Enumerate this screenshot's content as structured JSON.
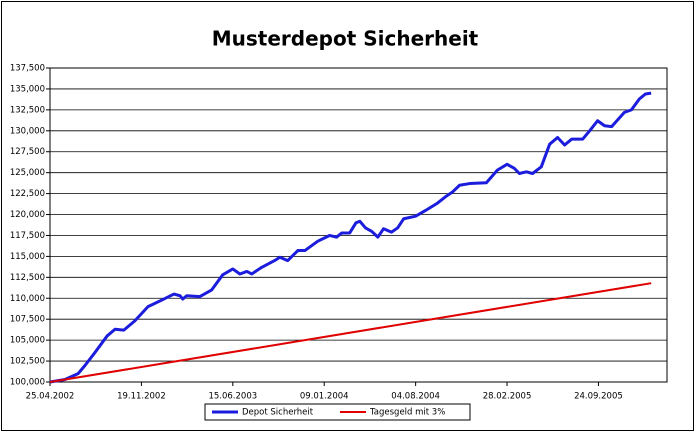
{
  "chart_data": {
    "type": "line",
    "title": "Musterdepot Sicherheit",
    "xlim": [
      "25.04.2002",
      "27.02.2006"
    ],
    "xticks": [
      "25.04.2002",
      "19.11.2002",
      "15.06.2003",
      "09.01.2004",
      "04.08.2004",
      "28.02.2005",
      "24.09.2005"
    ],
    "ylim": [
      100000,
      137500
    ],
    "yticks": [
      {
        "value": 100000,
        "label": "100,000"
      },
      {
        "value": 102500,
        "label": "102,500"
      },
      {
        "value": 105000,
        "label": "105,000"
      },
      {
        "value": 107500,
        "label": "107,500"
      },
      {
        "value": 110000,
        "label": "110,000"
      },
      {
        "value": 112500,
        "label": "112,500"
      },
      {
        "value": 115000,
        "label": "115,000"
      },
      {
        "value": 117500,
        "label": "117,500"
      },
      {
        "value": 120000,
        "label": "120,000"
      },
      {
        "value": 122500,
        "label": "122,500"
      },
      {
        "value": 125000,
        "label": "125,000"
      },
      {
        "value": 127500,
        "label": "127,500"
      },
      {
        "value": 130000,
        "label": "130,000"
      },
      {
        "value": 132500,
        "label": "132,500"
      },
      {
        "value": 135000,
        "label": "135,000"
      },
      {
        "value": 137500,
        "label": "137,500"
      }
    ],
    "grid": true,
    "legend": "bottom",
    "series": [
      {
        "name": "Depot Sicherheit",
        "color": "#1c1cdc",
        "x": [
          "25.04.2002",
          "29.05.2002",
          "28.06.2002",
          "14.07.2002",
          "05.08.2002",
          "02.09.2002",
          "20.09.2002",
          "10.10.2002",
          "04.11.2002",
          "04.12.2002",
          "05.01.2003",
          "01.02.2003",
          "15.02.2003",
          "21.02.2003",
          "02.03.2003",
          "01.04.2003",
          "28.04.2003",
          "23.05.2003",
          "15.06.2003",
          "01.07.2003",
          "17.07.2003",
          "28.07.2003",
          "20.08.2003",
          "18.09.2003",
          "30.09.2003",
          "18.10.2003",
          "10.11.2003",
          "26.11.2003",
          "25.12.2003",
          "21.01.2004",
          "06.02.2004",
          "18.02.2004",
          "07.03.2004",
          "21.03.2004",
          "30.03.2004",
          "12.04.2004",
          "26.04.2004",
          "10.05.2004",
          "23.05.2004",
          "10.06.2004",
          "24.06.2004",
          "08.07.2004",
          "04.08.2004",
          "27.08.2004",
          "21.09.2004",
          "13.10.2004",
          "27.10.2004",
          "12.11.2004",
          "05.12.2004",
          "12.01.2005",
          "06.02.2005",
          "28.02.2005",
          "17.03.2005",
          "28.03.2005",
          "13.04.2005",
          "27.04.2005",
          "17.05.2005",
          "05.06.2005",
          "23.06.2005",
          "09.07.2005",
          "25.07.2005",
          "19.08.2005",
          "04.09.2005",
          "22.09.2005",
          "08.10.2005",
          "24.10.2005",
          "22.11.2005",
          "08.12.2005",
          "26.12.2005",
          "09.01.2006",
          "22.01.2006"
        ],
        "values": [
          100000,
          100300,
          101000,
          102000,
          103500,
          105500,
          106300,
          106200,
          107300,
          109000,
          109800,
          110500,
          110300,
          109900,
          110300,
          110200,
          111000,
          112800,
          113500,
          112900,
          113200,
          112900,
          113700,
          114500,
          114900,
          114500,
          115700,
          115700,
          116800,
          117500,
          117300,
          117800,
          117800,
          119000,
          119200,
          118400,
          118000,
          117300,
          118300,
          117900,
          118400,
          119500,
          119800,
          120500,
          121300,
          122200,
          122700,
          123500,
          123700,
          123800,
          125300,
          126000,
          125500,
          124900,
          125100,
          124900,
          125700,
          128400,
          129200,
          128300,
          129000,
          129000,
          130000,
          131200,
          130600,
          130500,
          132200,
          132500,
          133800,
          134400,
          134500
        ]
      },
      {
        "name": "Tagesgeld mit 3%",
        "color": "#e00000",
        "x": [
          "25.04.2002",
          "22.01.2006"
        ],
        "values": [
          100000,
          111800
        ]
      }
    ]
  }
}
